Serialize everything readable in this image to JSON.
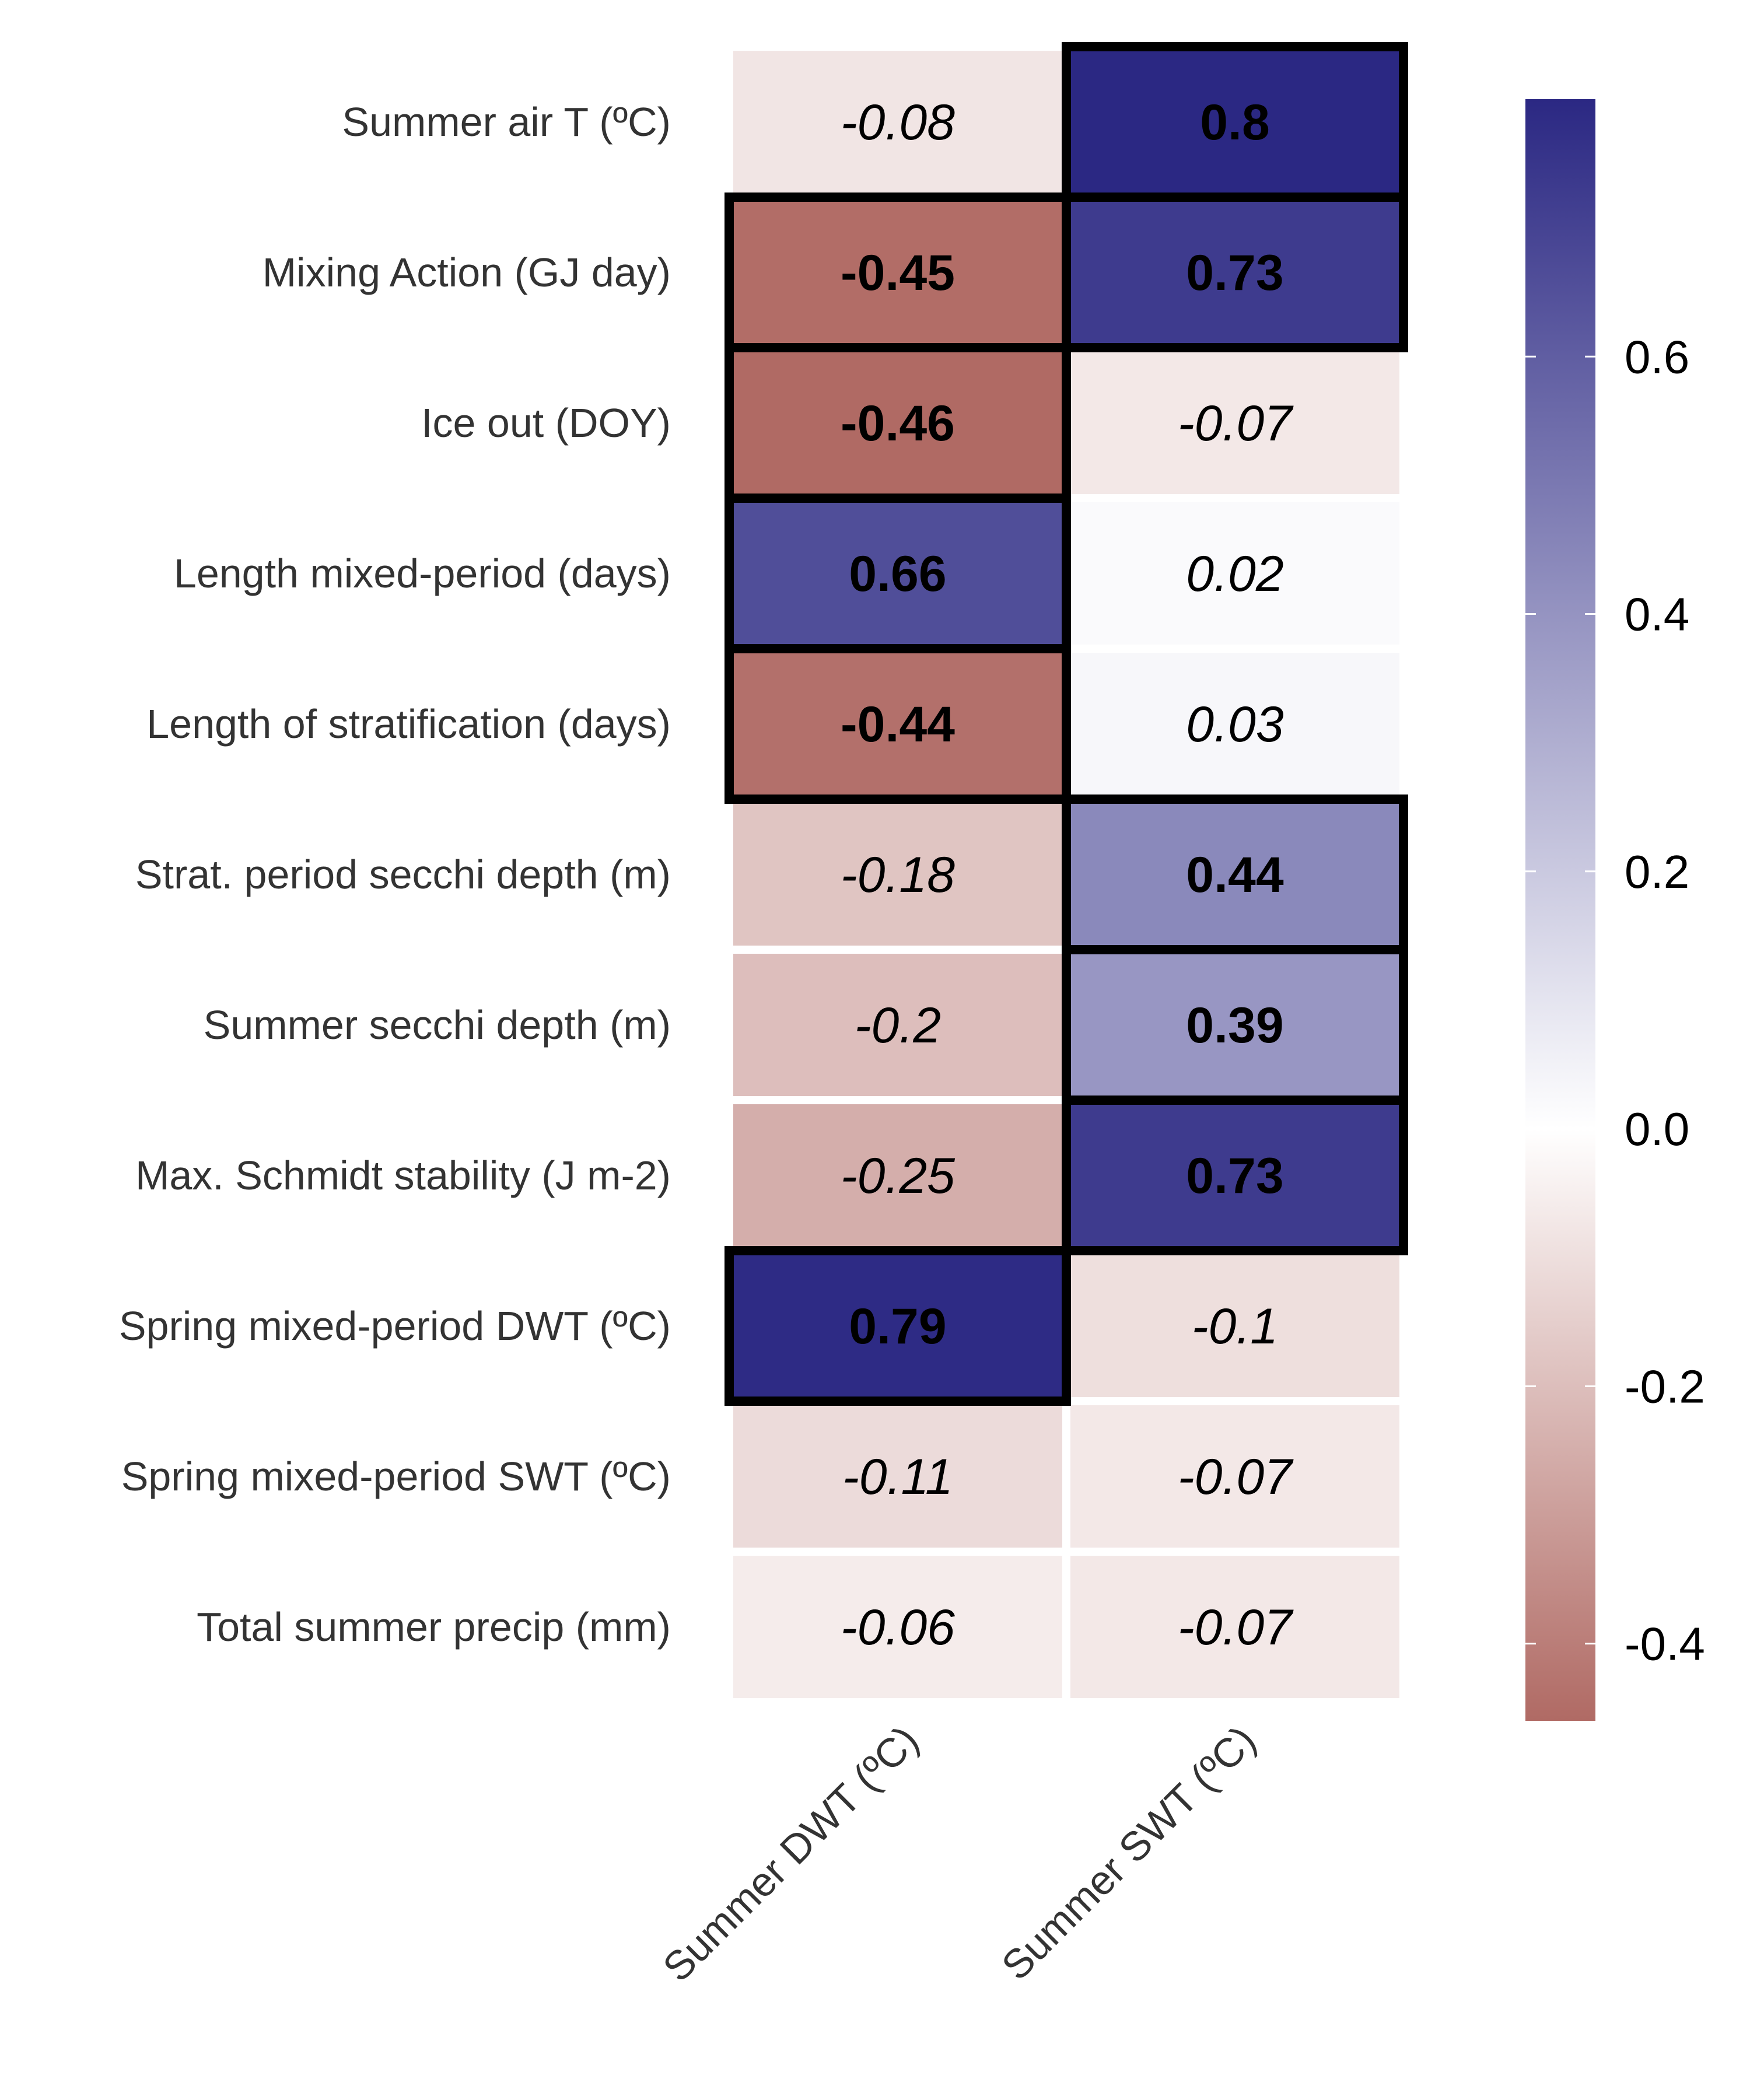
{
  "chart_data": {
    "type": "heatmap",
    "title": "",
    "xlabel": "",
    "ylabel": "",
    "columns": [
      "Summer DWT (ºC)",
      "Summer SWT (ºC)"
    ],
    "rows": [
      "Summer air T (ºC)",
      "Mixing Action (GJ day)",
      "Ice out (DOY)",
      "Length mixed-period (days)",
      "Length of stratification (days)",
      "Strat. period secchi depth (m)",
      "Summer secchi depth (m)",
      "Max. Schmidt stability (J m-2)",
      "Spring mixed-period DWT (ºC)",
      "Spring mixed-period SWT (ºC)",
      "Total summer precip (mm)"
    ],
    "values": [
      [
        -0.08,
        0.8
      ],
      [
        -0.45,
        0.73
      ],
      [
        -0.46,
        -0.07
      ],
      [
        0.66,
        0.02
      ],
      [
        -0.44,
        0.03
      ],
      [
        -0.18,
        0.44
      ],
      [
        -0.2,
        0.39
      ],
      [
        -0.25,
        0.73
      ],
      [
        0.79,
        -0.1
      ],
      [
        -0.11,
        -0.07
      ],
      [
        -0.06,
        -0.07
      ]
    ],
    "value_labels": [
      [
        "-0.08",
        "0.8"
      ],
      [
        "-0.45",
        "0.73"
      ],
      [
        "-0.46",
        "-0.07"
      ],
      [
        "0.66",
        "0.02"
      ],
      [
        "-0.44",
        "0.03"
      ],
      [
        "-0.18",
        "0.44"
      ],
      [
        "-0.2",
        "0.39"
      ],
      [
        "-0.25",
        "0.73"
      ],
      [
        "0.79",
        "-0.1"
      ],
      [
        "-0.11",
        "-0.07"
      ],
      [
        "-0.06",
        "-0.07"
      ]
    ],
    "highlighted": [
      [
        false,
        true
      ],
      [
        true,
        true
      ],
      [
        true,
        false
      ],
      [
        true,
        false
      ],
      [
        true,
        false
      ],
      [
        false,
        true
      ],
      [
        false,
        true
      ],
      [
        false,
        true
      ],
      [
        true,
        false
      ],
      [
        false,
        false
      ],
      [
        false,
        false
      ]
    ],
    "colorbar": {
      "min": -0.46,
      "max": 0.8,
      "ticks": [
        -0.4,
        -0.2,
        0.0,
        0.2,
        0.4,
        0.6
      ],
      "tick_labels": [
        "-0.4",
        "-0.2",
        "0.0",
        "0.2",
        "0.4",
        "0.6"
      ],
      "placement": "right"
    },
    "colors": {
      "negative": "#b06a64",
      "zero": "#ffffff",
      "positive": "#2b2883"
    },
    "grid": false
  }
}
